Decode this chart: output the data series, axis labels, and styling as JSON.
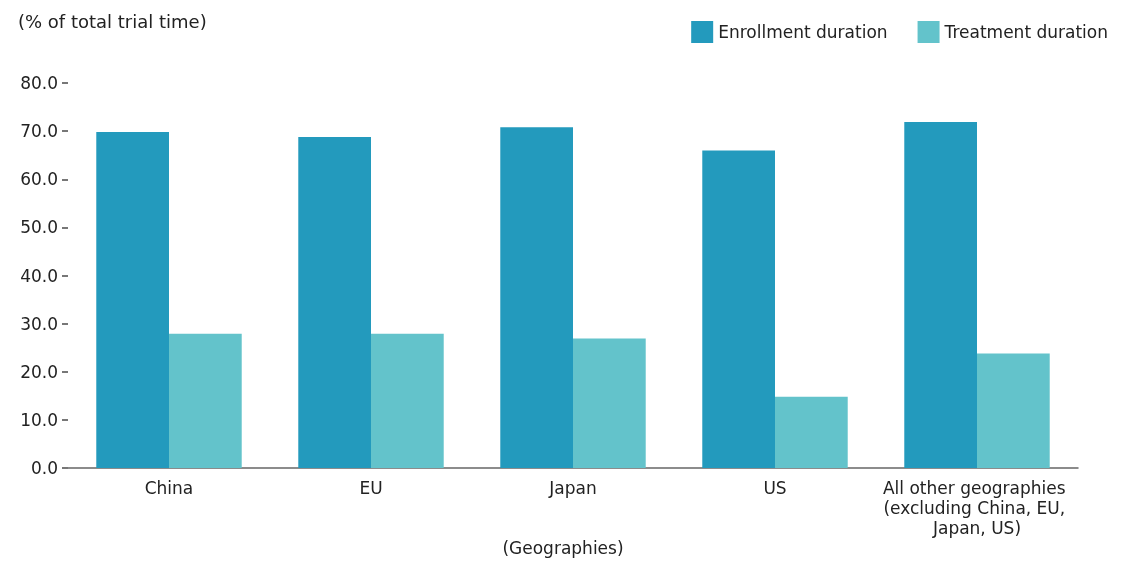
{
  "chart_data": {
    "type": "bar",
    "ylabel": "(% of total trial time)",
    "xlabel": "(Geographies)",
    "categories": [
      "China",
      "EU",
      "Japan",
      "US",
      "All other geographies (excluding China, EU, Japan, US)"
    ],
    "series": [
      {
        "name": "Enrollment duration",
        "color": "#239abd",
        "values": [
          69.8,
          68.8,
          70.8,
          66.0,
          71.9
        ]
      },
      {
        "name": "Treatment duration",
        "color": "#63c3cb",
        "values": [
          27.9,
          27.9,
          26.9,
          14.8,
          23.8
        ]
      }
    ],
    "ylim": [
      0,
      80
    ],
    "yticks": [
      {
        "value": 0,
        "label": "0.0"
      },
      {
        "value": 10,
        "label": "10.0"
      },
      {
        "value": 20,
        "label": "20.0"
      },
      {
        "value": 30,
        "label": "30.0"
      },
      {
        "value": 40,
        "label": "40.0"
      },
      {
        "value": 50,
        "label": "50.0"
      },
      {
        "value": 60,
        "label": "60.0"
      },
      {
        "value": 70,
        "label": "70.0"
      },
      {
        "value": 80,
        "label": "80.0"
      }
    ],
    "legend": "top right"
  }
}
